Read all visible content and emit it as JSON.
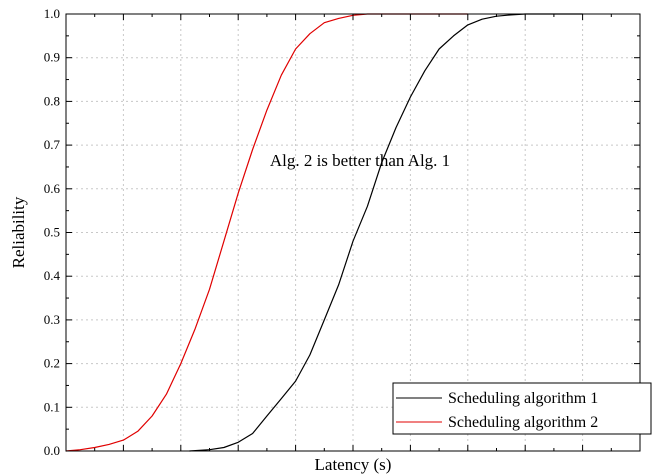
{
  "chart_data": {
    "type": "line",
    "title": "",
    "xlabel": "Latency (s)",
    "ylabel": "Reliability",
    "xlim": [
      0,
      20
    ],
    "ylim": [
      0,
      1.0
    ],
    "x_ticks_labeled": false,
    "x_ticks": [
      2,
      4,
      6,
      8,
      10,
      12,
      14,
      16,
      18
    ],
    "y_ticks": [
      "0.0",
      "0.1",
      "0.2",
      "0.3",
      "0.4",
      "0.5",
      "0.6",
      "0.7",
      "0.8",
      "0.9",
      "1.0"
    ],
    "grid": true,
    "legend_position": "bottom-right",
    "annotation": "Alg. 2 is better than Alg. 1",
    "series": [
      {
        "name": "Scheduling algorithm 1",
        "color": "#000000",
        "x": [
          4.3,
          5.0,
          5.5,
          6.0,
          6.5,
          7.0,
          7.5,
          8.0,
          8.5,
          9.0,
          9.5,
          10.0,
          10.5,
          11.0,
          11.5,
          12.0,
          12.5,
          13.0,
          13.5,
          14.0,
          14.5,
          15.0,
          15.5,
          16.0,
          16.5,
          17.0,
          17.5,
          18.0
        ],
        "y": [
          0.0,
          0.003,
          0.008,
          0.02,
          0.04,
          0.08,
          0.12,
          0.16,
          0.22,
          0.3,
          0.38,
          0.48,
          0.56,
          0.66,
          0.74,
          0.81,
          0.87,
          0.92,
          0.95,
          0.975,
          0.988,
          0.995,
          0.998,
          1.0,
          1.0,
          1.0,
          1.0,
          1.0
        ]
      },
      {
        "name": "Scheduling algorithm 2",
        "color": "#e00000",
        "x": [
          0.0,
          0.5,
          1.0,
          1.5,
          2.0,
          2.5,
          3.0,
          3.5,
          4.0,
          4.5,
          5.0,
          5.5,
          6.0,
          6.5,
          7.0,
          7.5,
          8.0,
          8.5,
          9.0,
          9.5,
          10.0,
          10.5,
          11.0,
          11.5,
          12.0,
          12.5,
          13.0,
          13.5,
          14.0
        ],
        "y": [
          0.0,
          0.003,
          0.008,
          0.015,
          0.025,
          0.045,
          0.08,
          0.13,
          0.2,
          0.28,
          0.37,
          0.48,
          0.59,
          0.69,
          0.78,
          0.86,
          0.92,
          0.955,
          0.98,
          0.99,
          0.997,
          1.0,
          1.0,
          1.0,
          1.0,
          1.0,
          1.0,
          1.0,
          1.0
        ]
      }
    ]
  }
}
